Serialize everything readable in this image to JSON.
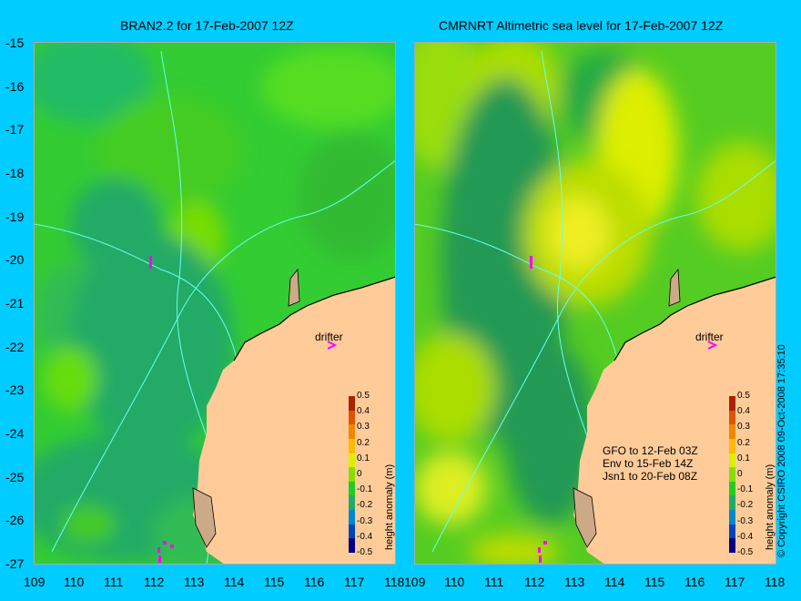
{
  "panels": [
    {
      "title": "BRAN2.2 for 17-Feb-2007 12Z",
      "drifter_label": "drifter"
    },
    {
      "title": "CMRNRT Altimetric sea level  for 17-Feb-2007 12Z",
      "drifter_label": "drifter",
      "notes": [
        "GFO to 12-Feb 03Z",
        "Env to 15-Feb 14Z",
        "Jsn1 to 20-Feb 08Z"
      ]
    }
  ],
  "y_ticks": [
    "-15",
    "-16",
    "-17",
    "-18",
    "-19",
    "-20",
    "-21",
    "-22",
    "-23",
    "-24",
    "-25",
    "-26",
    "-27"
  ],
  "x_ticks": [
    "109",
    "110",
    "111",
    "112",
    "113",
    "114",
    "115",
    "116",
    "117",
    "118"
  ],
  "colorbar": {
    "label": "height anomaly (m)",
    "ticks": [
      "0.5",
      "0.4",
      "0.3",
      "0.2",
      "0.1",
      "0",
      "-0.1",
      "-0.2",
      "-0.3",
      "-0.4",
      "-0.5"
    ],
    "colors": [
      "#aa2200",
      "#dd5500",
      "#ee8800",
      "#ffbb00",
      "#ddee00",
      "#88dd00",
      "#22cc22",
      "#22aa66",
      "#0088cc",
      "#0044bb",
      "#000088"
    ]
  },
  "copyright": "© Copyright CSIRO 2008   09-Oct-2008 17:35:10",
  "colors": {
    "background": "#00ccff",
    "land": "#ffcc99",
    "ocean_base": "#33cc33"
  }
}
